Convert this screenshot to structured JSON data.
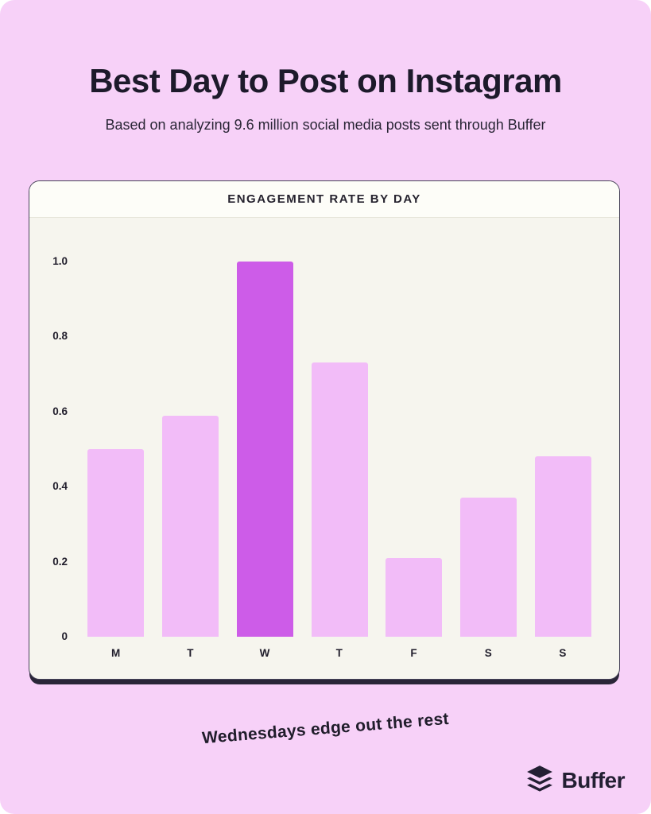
{
  "page": {
    "title": "Best Day to Post on Instagram",
    "subtitle": "Based on analyzing 9.6 million social media posts sent through Buffer",
    "caption": "Wednesdays edge out the rest",
    "brand": "Buffer"
  },
  "card": {
    "header": "ENGAGEMENT RATE BY DAY"
  },
  "chart_data": {
    "type": "bar",
    "title": "ENGAGEMENT RATE BY DAY",
    "categories": [
      "M",
      "T",
      "W",
      "T",
      "F",
      "S",
      "S"
    ],
    "values": [
      0.5,
      0.59,
      1.0,
      0.73,
      0.21,
      0.37,
      0.48
    ],
    "highlight_index": 2,
    "highlight_label": "W",
    "yticks": [
      "1.0",
      "0.8",
      "0.6",
      "0.4",
      "0.2",
      "0"
    ],
    "ylim": [
      0,
      1.0
    ],
    "xlabel": "",
    "ylabel": "",
    "grid": false,
    "legend": "none",
    "bar_color": "#f2bcf8",
    "highlight_color": "#cd5ce8"
  },
  "colors": {
    "background": "#f7d1f8",
    "card_bg": "#f6f5ee",
    "card_header_bg": "#fdfdf8",
    "ink": "#1d1a2b",
    "shadow": "#2a2638",
    "bar": "#f2bcf8",
    "bar_highlight": "#cd5ce8"
  },
  "icons": {
    "brand_logo": "buffer-stack-icon"
  }
}
